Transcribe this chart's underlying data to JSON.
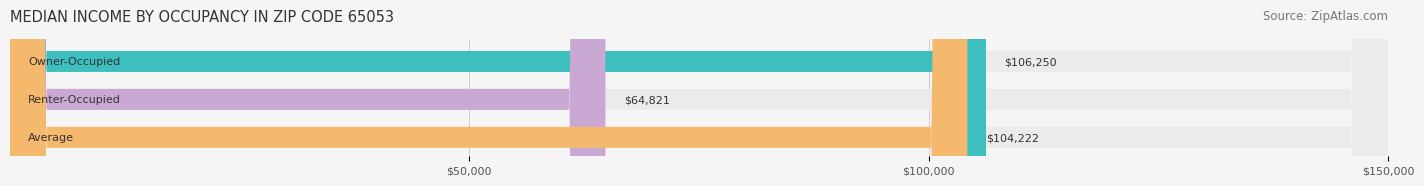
{
  "title": "MEDIAN INCOME BY OCCUPANCY IN ZIP CODE 65053",
  "source_text": "Source: ZipAtlas.com",
  "categories": [
    "Owner-Occupied",
    "Renter-Occupied",
    "Average"
  ],
  "values": [
    106250,
    64821,
    104222
  ],
  "bar_colors": [
    "#3dbfbf",
    "#c9a8d4",
    "#f5b96e"
  ],
  "bar_bg_color": "#ebebeb",
  "label_texts": [
    "$106,250",
    "$64,821",
    "$104,222"
  ],
  "xlim": [
    0,
    150000
  ],
  "xticks": [
    0,
    50000,
    100000,
    150000
  ],
  "xtick_labels": [
    "$50,000",
    "$100,000",
    "$150,000"
  ],
  "title_fontsize": 10.5,
  "source_fontsize": 8.5,
  "bar_label_fontsize": 8,
  "category_fontsize": 8,
  "tick_fontsize": 8,
  "bar_height": 0.55,
  "background_color": "#f5f5f5"
}
